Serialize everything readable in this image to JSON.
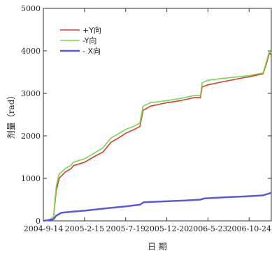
{
  "chart_data": {
    "type": "line",
    "xlabel": "日 期",
    "ylabel": "剂量（rad）",
    "ylim": [
      0,
      5000
    ],
    "xlim": [
      "2004-09-14",
      "2007-01-15"
    ],
    "x_ticks": [
      "2004-9-14",
      "2005-2-15",
      "2005-7-19",
      "2005-12-20",
      "2006-5-23",
      "2006-10-24"
    ],
    "y_ticks": [
      0,
      1000,
      2000,
      3000,
      4000,
      5000
    ],
    "legend_position": "top-left",
    "series": [
      {
        "name": "+Y向",
        "color": "#d23b3b",
        "points": [
          [
            "2004-09-14",
            0
          ],
          [
            "2004-10-05",
            20
          ],
          [
            "2004-10-22",
            60
          ],
          [
            "2004-11-01",
            700
          ],
          [
            "2004-11-12",
            1000
          ],
          [
            "2004-12-05",
            1150
          ],
          [
            "2004-12-25",
            1220
          ],
          [
            "2005-01-05",
            1300
          ],
          [
            "2005-02-15",
            1380
          ],
          [
            "2005-03-20",
            1500
          ],
          [
            "2005-04-25",
            1620
          ],
          [
            "2005-05-25",
            1850
          ],
          [
            "2005-06-25",
            1960
          ],
          [
            "2005-07-19",
            2060
          ],
          [
            "2005-08-20",
            2150
          ],
          [
            "2005-09-10",
            2220
          ],
          [
            "2005-09-22",
            2600
          ],
          [
            "2005-10-20",
            2700
          ],
          [
            "2005-12-20",
            2780
          ],
          [
            "2006-02-10",
            2830
          ],
          [
            "2006-04-01",
            2900
          ],
          [
            "2006-04-25",
            2900
          ],
          [
            "2006-05-01",
            3150
          ],
          [
            "2006-05-23",
            3200
          ],
          [
            "2006-07-15",
            3270
          ],
          [
            "2006-09-01",
            3330
          ],
          [
            "2006-10-24",
            3390
          ],
          [
            "2006-12-15",
            3460
          ],
          [
            "2006-12-28",
            3700
          ],
          [
            "2007-01-08",
            3950
          ],
          [
            "2007-01-15",
            3900
          ]
        ]
      },
      {
        "name": "-Y向",
        "color": "#7bd64a",
        "points": [
          [
            "2004-09-14",
            0
          ],
          [
            "2004-10-05",
            25
          ],
          [
            "2004-10-22",
            80
          ],
          [
            "2004-11-01",
            800
          ],
          [
            "2004-11-12",
            1100
          ],
          [
            "2004-12-05",
            1230
          ],
          [
            "2004-12-25",
            1300
          ],
          [
            "2005-01-05",
            1380
          ],
          [
            "2005-02-15",
            1460
          ],
          [
            "2005-03-20",
            1580
          ],
          [
            "2005-04-25",
            1720
          ],
          [
            "2005-05-25",
            1950
          ],
          [
            "2005-06-25",
            2060
          ],
          [
            "2005-07-19",
            2150
          ],
          [
            "2005-08-20",
            2230
          ],
          [
            "2005-09-10",
            2300
          ],
          [
            "2005-09-22",
            2700
          ],
          [
            "2005-10-20",
            2780
          ],
          [
            "2005-12-20",
            2830
          ],
          [
            "2006-02-10",
            2880
          ],
          [
            "2006-04-01",
            2950
          ],
          [
            "2006-04-25",
            2950
          ],
          [
            "2006-05-01",
            3250
          ],
          [
            "2006-05-23",
            3310
          ],
          [
            "2006-07-15",
            3350
          ],
          [
            "2006-09-01",
            3380
          ],
          [
            "2006-10-24",
            3420
          ],
          [
            "2006-12-15",
            3480
          ],
          [
            "2006-12-28",
            3750
          ],
          [
            "2007-01-08",
            4000
          ],
          [
            "2007-01-15",
            3950
          ]
        ]
      },
      {
        "name": "- X向",
        "color": "#5a5ad8",
        "points": [
          [
            "2004-09-14",
            0
          ],
          [
            "2004-10-22",
            40
          ],
          [
            "2004-11-01",
            120
          ],
          [
            "2004-11-20",
            190
          ],
          [
            "2005-01-05",
            220
          ],
          [
            "2005-02-15",
            240
          ],
          [
            "2005-05-01",
            290
          ],
          [
            "2005-07-19",
            340
          ],
          [
            "2005-09-10",
            380
          ],
          [
            "2005-09-25",
            440
          ],
          [
            "2005-12-20",
            460
          ],
          [
            "2006-03-01",
            480
          ],
          [
            "2006-04-25",
            500
          ],
          [
            "2006-05-10",
            530
          ],
          [
            "2006-07-15",
            550
          ],
          [
            "2006-10-24",
            580
          ],
          [
            "2006-12-15",
            600
          ],
          [
            "2007-01-15",
            660
          ]
        ]
      }
    ]
  }
}
